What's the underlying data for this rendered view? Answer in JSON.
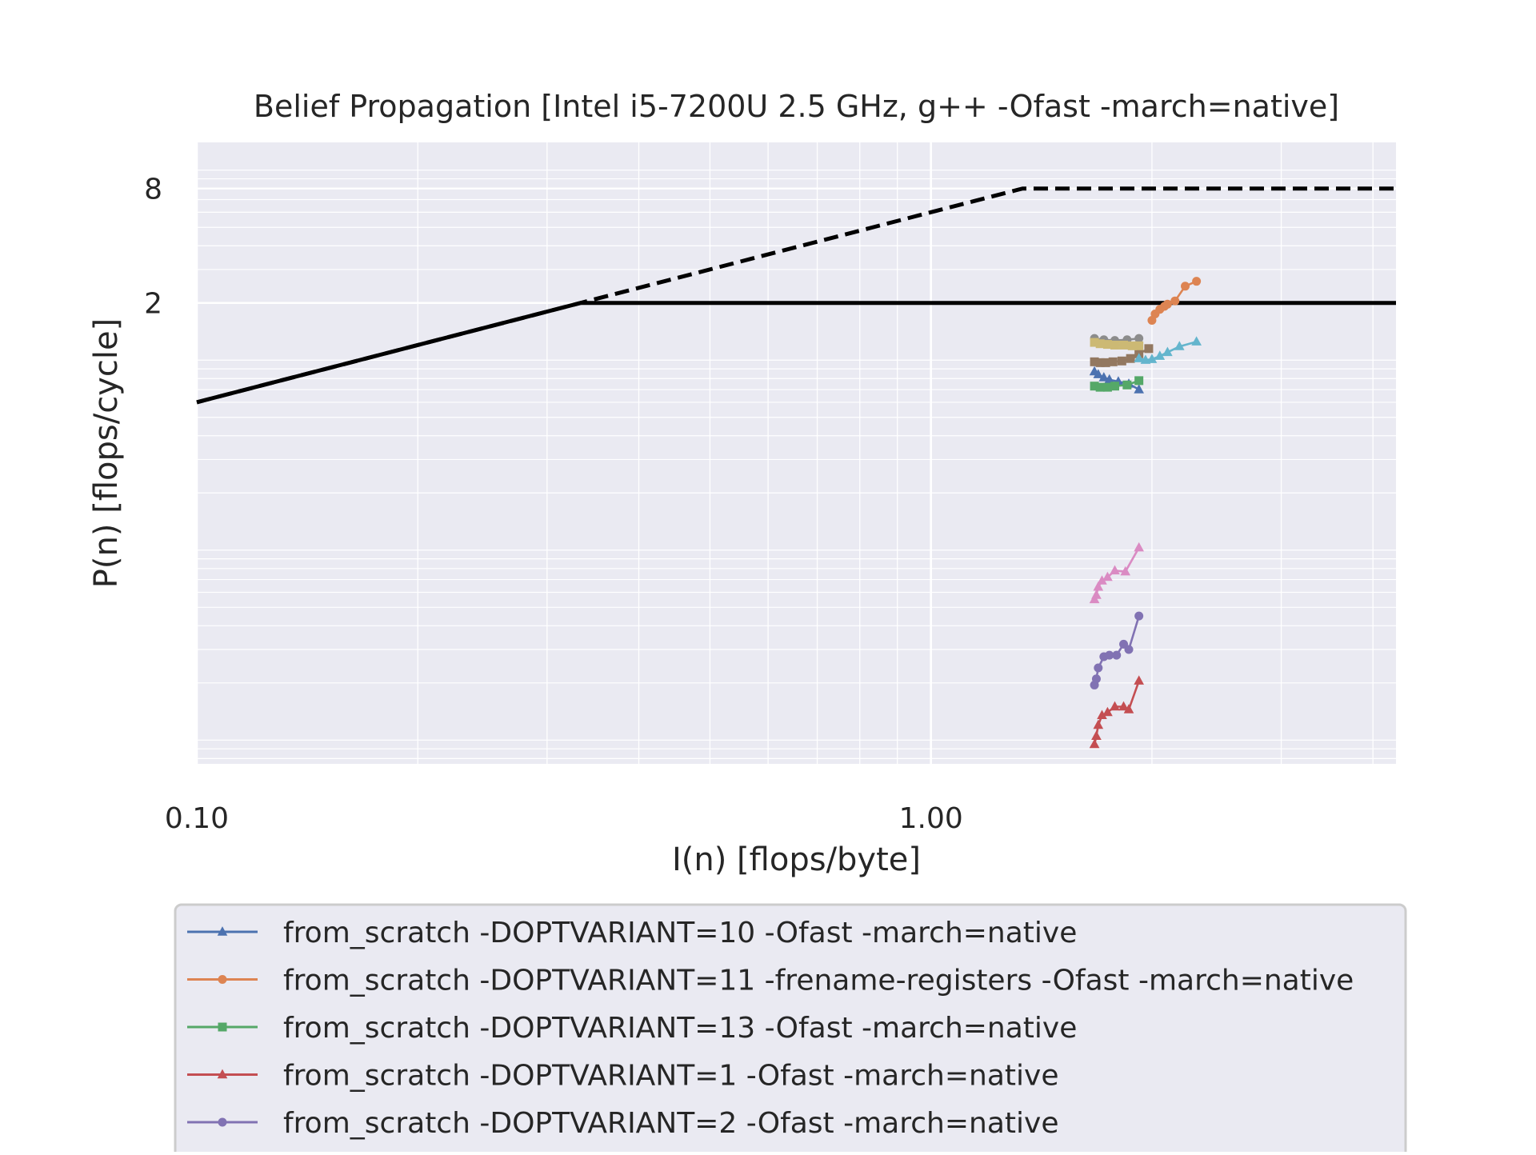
{
  "chart_data": {
    "type": "line",
    "title": "Belief Propagation [Intel i5-7200U 2.5 GHz, g++ -Ofast -march=native]",
    "xlabel": "I(n) [flops/byte]",
    "ylabel": "P(n) [flops/cycle]",
    "x_scale": "log",
    "y_scale": "log",
    "xlim": [
      0.1,
      4.3
    ],
    "ylim": [
      0.0075,
      14
    ],
    "x_ticks": [
      {
        "value": 0.1,
        "label": "0.10"
      },
      {
        "value": 1.0,
        "label": "1.00"
      }
    ],
    "y_ticks": [
      {
        "value": 2,
        "label": "2"
      },
      {
        "value": 8,
        "label": "8"
      }
    ],
    "grid": true,
    "legend_placement": "below",
    "roofline": {
      "scalar": {
        "peak": 2,
        "bandwidth_slope": 6.0,
        "style": "solid",
        "color": "#000000"
      },
      "vector": {
        "peak": 8,
        "bandwidth_slope": 6.0,
        "style": "dashed",
        "color": "#000000"
      }
    },
    "series": [
      {
        "name": "from_scratch -DOPTVARIANT=10 -Ofast -march=native",
        "color": "#4c72b0",
        "marker": "triangle",
        "x": [
          1.67,
          1.69,
          1.72,
          1.75,
          1.8,
          1.86,
          1.92
        ],
        "y": [
          0.87,
          0.84,
          0.81,
          0.79,
          0.77,
          0.75,
          0.7
        ]
      },
      {
        "name": "from_scratch -DOPTVARIANT=11 -frename-registers -Ofast -march=native",
        "color": "#dd8452",
        "marker": "circle",
        "x": [
          2.0,
          2.02,
          2.05,
          2.08,
          2.1,
          2.15,
          2.22,
          2.3
        ],
        "y": [
          1.62,
          1.75,
          1.85,
          1.92,
          1.97,
          2.05,
          2.45,
          2.6
        ]
      },
      {
        "name": "from_scratch -DOPTVARIANT=13 -Ofast -march=native",
        "color": "#55a868",
        "marker": "square",
        "x": [
          1.67,
          1.7,
          1.74,
          1.78,
          1.85,
          1.92
        ],
        "y": [
          0.73,
          0.72,
          0.72,
          0.73,
          0.74,
          0.78
        ]
      },
      {
        "name": "from_scratch -DOPTVARIANT=1 -Ofast -march=native",
        "color": "#c44e52",
        "marker": "triangle",
        "x": [
          1.67,
          1.68,
          1.69,
          1.71,
          1.74,
          1.78,
          1.83,
          1.86,
          1.92
        ],
        "y": [
          0.0095,
          0.0105,
          0.012,
          0.0135,
          0.014,
          0.015,
          0.015,
          0.0145,
          0.0205
        ]
      },
      {
        "name": "from_scratch -DOPTVARIANT=2 -Ofast -march=native",
        "color": "#8172b3",
        "marker": "circle",
        "x": [
          1.67,
          1.68,
          1.69,
          1.72,
          1.75,
          1.79,
          1.83,
          1.86,
          1.92
        ],
        "y": [
          0.0195,
          0.021,
          0.024,
          0.0275,
          0.028,
          0.028,
          0.032,
          0.03,
          0.045
        ]
      },
      {
        "color": "#937860",
        "marker": "square",
        "x": [
          1.67,
          1.7,
          1.73,
          1.77,
          1.82,
          1.87,
          1.92,
          1.98
        ],
        "y": [
          0.98,
          0.97,
          0.97,
          0.98,
          0.99,
          1.02,
          1.08,
          1.15
        ]
      },
      {
        "color": "#da8bc3",
        "marker": "triangle",
        "x": [
          1.67,
          1.68,
          1.69,
          1.71,
          1.74,
          1.78,
          1.84,
          1.92
        ],
        "y": [
          0.055,
          0.058,
          0.064,
          0.069,
          0.072,
          0.078,
          0.077,
          0.103
        ]
      },
      {
        "color": "#8c8c8c",
        "marker": "circle",
        "x": [
          1.67,
          1.72,
          1.78,
          1.85,
          1.92
        ],
        "y": [
          1.3,
          1.28,
          1.27,
          1.28,
          1.3
        ]
      },
      {
        "color": "#ccb974",
        "marker": "square",
        "x": [
          1.67,
          1.7,
          1.74,
          1.78,
          1.83,
          1.88,
          1.92
        ],
        "y": [
          1.24,
          1.22,
          1.21,
          1.2,
          1.2,
          1.19,
          1.19
        ]
      },
      {
        "color": "#64b5cd",
        "marker": "triangle",
        "x": [
          1.92,
          1.96,
          2.0,
          2.05,
          2.1,
          2.18,
          2.3
        ],
        "y": [
          1.02,
          1.0,
          1.01,
          1.05,
          1.1,
          1.18,
          1.25
        ]
      }
    ]
  }
}
